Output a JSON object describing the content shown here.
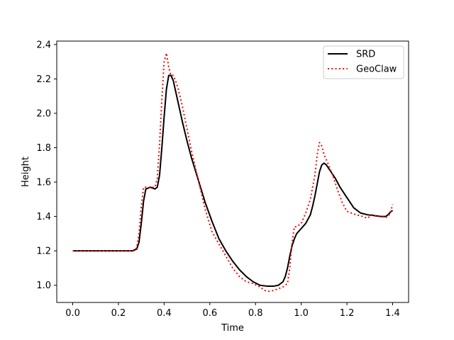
{
  "chart_data": {
    "type": "line",
    "title": "",
    "xlabel": "Time",
    "ylabel": "Height",
    "xlim": [
      -0.07,
      1.47
    ],
    "ylim": [
      0.9,
      2.42
    ],
    "xticks": [
      0.0,
      0.2,
      0.4,
      0.6,
      0.8,
      1.0,
      1.2,
      1.4
    ],
    "xtick_labels": [
      "0.0",
      "0.2",
      "0.4",
      "0.6",
      "0.8",
      "1.0",
      "1.2",
      "1.4"
    ],
    "yticks": [
      1.0,
      1.2,
      1.4,
      1.6,
      1.8,
      2.0,
      2.2,
      2.4
    ],
    "ytick_labels": [
      "1.0",
      "1.2",
      "1.4",
      "1.6",
      "1.8",
      "2.0",
      "2.2",
      "2.4"
    ],
    "grid": false,
    "legend_position": "top-right",
    "series": [
      {
        "name": "SRD",
        "color": "#000000",
        "style": "solid",
        "x": [
          0.0,
          0.1,
          0.2,
          0.26,
          0.28,
          0.29,
          0.3,
          0.31,
          0.32,
          0.34,
          0.36,
          0.37,
          0.38,
          0.39,
          0.4,
          0.41,
          0.42,
          0.43,
          0.44,
          0.46,
          0.48,
          0.5,
          0.52,
          0.55,
          0.58,
          0.61,
          0.64,
          0.67,
          0.7,
          0.73,
          0.76,
          0.79,
          0.82,
          0.85,
          0.88,
          0.9,
          0.92,
          0.93,
          0.94,
          0.95,
          0.96,
          0.97,
          0.98,
          1.0,
          1.02,
          1.04,
          1.05,
          1.06,
          1.07,
          1.08,
          1.09,
          1.1,
          1.11,
          1.12,
          1.13,
          1.15,
          1.17,
          1.2,
          1.23,
          1.26,
          1.29,
          1.32,
          1.35,
          1.37,
          1.38,
          1.39,
          1.4
        ],
        "y": [
          1.2,
          1.2,
          1.2,
          1.2,
          1.21,
          1.25,
          1.36,
          1.49,
          1.56,
          1.57,
          1.56,
          1.57,
          1.64,
          1.8,
          1.98,
          2.14,
          2.22,
          2.22,
          2.19,
          2.07,
          1.95,
          1.84,
          1.74,
          1.61,
          1.48,
          1.37,
          1.27,
          1.2,
          1.14,
          1.09,
          1.05,
          1.02,
          1.0,
          0.995,
          0.995,
          1.0,
          1.02,
          1.05,
          1.1,
          1.17,
          1.23,
          1.27,
          1.3,
          1.33,
          1.36,
          1.41,
          1.46,
          1.52,
          1.59,
          1.66,
          1.7,
          1.71,
          1.7,
          1.68,
          1.66,
          1.62,
          1.57,
          1.51,
          1.45,
          1.42,
          1.41,
          1.405,
          1.4,
          1.4,
          1.41,
          1.425,
          1.435
        ]
      },
      {
        "name": "GeoClaw",
        "color": "#ff0000",
        "style": "dotted",
        "x": [
          0.0,
          0.1,
          0.2,
          0.27,
          0.28,
          0.29,
          0.3,
          0.31,
          0.32,
          0.35,
          0.36,
          0.37,
          0.38,
          0.39,
          0.4,
          0.41,
          0.42,
          0.43,
          0.44,
          0.45,
          0.46,
          0.48,
          0.5,
          0.52,
          0.55,
          0.58,
          0.61,
          0.64,
          0.67,
          0.7,
          0.73,
          0.76,
          0.79,
          0.82,
          0.84,
          0.86,
          0.88,
          0.9,
          0.92,
          0.94,
          0.95,
          0.96,
          0.97,
          0.98,
          1.0,
          1.02,
          1.04,
          1.06,
          1.07,
          1.08,
          1.09,
          1.1,
          1.12,
          1.14,
          1.16,
          1.18,
          1.2,
          1.22,
          1.24,
          1.27,
          1.29,
          1.31,
          1.33,
          1.35,
          1.37,
          1.38,
          1.39,
          1.4
        ],
        "y": [
          1.2,
          1.2,
          1.2,
          1.2,
          1.22,
          1.3,
          1.46,
          1.57,
          1.57,
          1.57,
          1.57,
          1.62,
          1.82,
          2.08,
          2.3,
          2.35,
          2.27,
          2.22,
          2.22,
          2.19,
          2.15,
          2.04,
          1.91,
          1.78,
          1.61,
          1.44,
          1.31,
          1.24,
          1.17,
          1.1,
          1.05,
          1.02,
          1.01,
          0.99,
          0.97,
          0.965,
          0.97,
          0.98,
          0.99,
          1.01,
          1.1,
          1.25,
          1.34,
          1.34,
          1.36,
          1.42,
          1.5,
          1.64,
          1.76,
          1.83,
          1.81,
          1.76,
          1.7,
          1.63,
          1.55,
          1.48,
          1.43,
          1.42,
          1.41,
          1.4,
          1.39,
          1.41,
          1.4,
          1.4,
          1.395,
          1.4,
          1.42,
          1.47
        ]
      }
    ]
  }
}
